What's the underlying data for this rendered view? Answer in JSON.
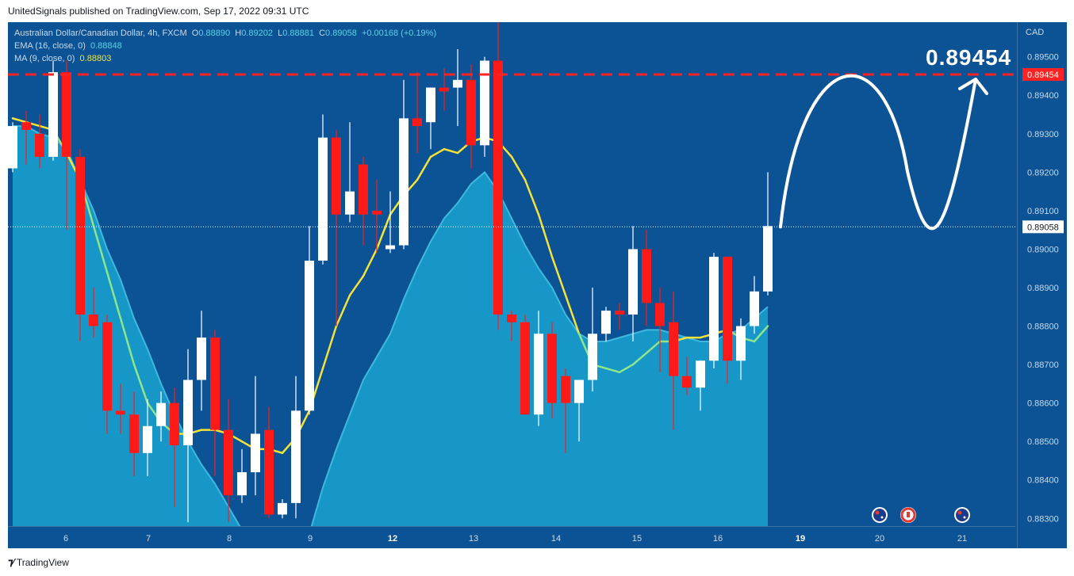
{
  "header": {
    "published_line": "UnitedSignals published on TradingView.com, Sep 17, 2022 09:31 UTC"
  },
  "legend": {
    "symbol_line": "Australian Dollar/Canadian Dollar, 4h, FXCM",
    "o_label": "O",
    "o_value": "0.88890",
    "h_label": "H",
    "h_value": "0.89202",
    "l_label": "L",
    "l_value": "0.88881",
    "c_label": "C",
    "c_value": "0.89058",
    "change": "+0.00168 (+0.19%)",
    "ema_label": "EMA (16, close, 0)",
    "ema_value": "0.88848",
    "ma_label": "MA (9, close, 0)",
    "ma_value": "0.88803"
  },
  "price_axis": {
    "currency": "CAD",
    "ticks": [
      "0.89500",
      "0.89400",
      "0.89300",
      "0.89200",
      "0.89100",
      "0.89000",
      "0.88900",
      "0.88800",
      "0.88700",
      "0.88600",
      "0.88500",
      "0.88400",
      "0.88300"
    ],
    "target_badge": "0.89454",
    "current_badge": "0.89058"
  },
  "time_axis": {
    "labels": [
      "6",
      "7",
      "8",
      "9",
      "12",
      "13",
      "14",
      "15",
      "16",
      "19",
      "20",
      "21"
    ]
  },
  "annotation": {
    "target_text": "0.89454"
  },
  "footer": {
    "brand": "TradingView"
  },
  "colors": {
    "background": "#0b5394",
    "up_candle": "#ffffff",
    "down_candle": "#ff1a1a",
    "ema_fill": "#1aa3d1",
    "ma_line": "#f5e33a",
    "ma_line_below": "#8fe68a",
    "target_line": "#ff2222"
  },
  "events": [
    {
      "icon": "australia-flag-icon"
    },
    {
      "icon": "canada-flag-icon"
    },
    {
      "icon": "australia-flag-icon"
    }
  ],
  "chart_data": {
    "type": "candlestick",
    "symbol": "AUD/CAD",
    "timeframe": "4h",
    "y_range": [
      0.8828,
      0.8959
    ],
    "target_level": 0.89454,
    "last_price": 0.89058,
    "candles": [
      {
        "o": 0.8921,
        "h": 0.8933,
        "l": 0.892,
        "c": 0.8932
      },
      {
        "o": 0.8933,
        "h": 0.8936,
        "l": 0.8922,
        "c": 0.8931
      },
      {
        "o": 0.893,
        "h": 0.8935,
        "l": 0.8921,
        "c": 0.8924
      },
      {
        "o": 0.8924,
        "h": 0.8949,
        "l": 0.8923,
        "c": 0.8946
      },
      {
        "o": 0.8946,
        "h": 0.8949,
        "l": 0.8905,
        "c": 0.8924
      },
      {
        "o": 0.8924,
        "h": 0.8926,
        "l": 0.8876,
        "c": 0.8883
      },
      {
        "o": 0.8883,
        "h": 0.889,
        "l": 0.8877,
        "c": 0.888
      },
      {
        "o": 0.8881,
        "h": 0.8883,
        "l": 0.8852,
        "c": 0.8858
      },
      {
        "o": 0.8858,
        "h": 0.8865,
        "l": 0.8852,
        "c": 0.8857
      },
      {
        "o": 0.8857,
        "h": 0.8863,
        "l": 0.8841,
        "c": 0.8847
      },
      {
        "o": 0.8847,
        "h": 0.8861,
        "l": 0.8841,
        "c": 0.8854
      },
      {
        "o": 0.8854,
        "h": 0.8863,
        "l": 0.885,
        "c": 0.886
      },
      {
        "o": 0.886,
        "h": 0.8864,
        "l": 0.8833,
        "c": 0.8849
      },
      {
        "o": 0.8849,
        "h": 0.8874,
        "l": 0.8829,
        "c": 0.8866
      },
      {
        "o": 0.8866,
        "h": 0.8884,
        "l": 0.8858,
        "c": 0.8877
      },
      {
        "o": 0.8877,
        "h": 0.8879,
        "l": 0.8841,
        "c": 0.8853
      },
      {
        "o": 0.8853,
        "h": 0.8861,
        "l": 0.8829,
        "c": 0.8836
      },
      {
        "o": 0.8836,
        "h": 0.8848,
        "l": 0.8834,
        "c": 0.8842
      },
      {
        "o": 0.8842,
        "h": 0.8867,
        "l": 0.8836,
        "c": 0.8852
      },
      {
        "o": 0.8853,
        "h": 0.8859,
        "l": 0.883,
        "c": 0.8831
      },
      {
        "o": 0.8831,
        "h": 0.8835,
        "l": 0.883,
        "c": 0.8834
      },
      {
        "o": 0.8834,
        "h": 0.8867,
        "l": 0.883,
        "c": 0.8858
      },
      {
        "o": 0.8858,
        "h": 0.8906,
        "l": 0.8857,
        "c": 0.8897
      },
      {
        "o": 0.8897,
        "h": 0.8935,
        "l": 0.8896,
        "c": 0.8929
      },
      {
        "o": 0.8929,
        "h": 0.8931,
        "l": 0.888,
        "c": 0.8909
      },
      {
        "o": 0.8909,
        "h": 0.8933,
        "l": 0.8907,
        "c": 0.8915
      },
      {
        "o": 0.8922,
        "h": 0.8924,
        "l": 0.8901,
        "c": 0.8909
      },
      {
        "o": 0.891,
        "h": 0.8918,
        "l": 0.8899,
        "c": 0.8909
      },
      {
        "o": 0.89,
        "h": 0.8915,
        "l": 0.8899,
        "c": 0.8901
      },
      {
        "o": 0.8901,
        "h": 0.8944,
        "l": 0.89,
        "c": 0.8934
      },
      {
        "o": 0.8934,
        "h": 0.8946,
        "l": 0.8925,
        "c": 0.8932
      },
      {
        "o": 0.8933,
        "h": 0.8942,
        "l": 0.8926,
        "c": 0.8942
      },
      {
        "o": 0.8942,
        "h": 0.8947,
        "l": 0.8936,
        "c": 0.8941
      },
      {
        "o": 0.8942,
        "h": 0.8952,
        "l": 0.8932,
        "c": 0.8944
      },
      {
        "o": 0.8944,
        "h": 0.8948,
        "l": 0.8921,
        "c": 0.8927
      },
      {
        "o": 0.8927,
        "h": 0.895,
        "l": 0.8924,
        "c": 0.8949
      },
      {
        "o": 0.8949,
        "h": 0.8963,
        "l": 0.8879,
        "c": 0.8883
      },
      {
        "o": 0.8883,
        "h": 0.8884,
        "l": 0.8876,
        "c": 0.8881
      },
      {
        "o": 0.8881,
        "h": 0.8883,
        "l": 0.8857,
        "c": 0.8857
      },
      {
        "o": 0.8857,
        "h": 0.8884,
        "l": 0.8854,
        "c": 0.8878
      },
      {
        "o": 0.8878,
        "h": 0.8881,
        "l": 0.8856,
        "c": 0.886
      },
      {
        "o": 0.8867,
        "h": 0.8869,
        "l": 0.8847,
        "c": 0.886
      },
      {
        "o": 0.886,
        "h": 0.8866,
        "l": 0.885,
        "c": 0.8866
      },
      {
        "o": 0.8866,
        "h": 0.889,
        "l": 0.8863,
        "c": 0.8878
      },
      {
        "o": 0.8878,
        "h": 0.8885,
        "l": 0.8876,
        "c": 0.8884
      },
      {
        "o": 0.8884,
        "h": 0.8886,
        "l": 0.8879,
        "c": 0.8883
      },
      {
        "o": 0.8883,
        "h": 0.8906,
        "l": 0.8876,
        "c": 0.89
      },
      {
        "o": 0.89,
        "h": 0.8905,
        "l": 0.888,
        "c": 0.8886
      },
      {
        "o": 0.8886,
        "h": 0.889,
        "l": 0.8868,
        "c": 0.888
      },
      {
        "o": 0.8881,
        "h": 0.8889,
        "l": 0.8853,
        "c": 0.8867
      },
      {
        "o": 0.8867,
        "h": 0.8872,
        "l": 0.8862,
        "c": 0.8864
      },
      {
        "o": 0.8864,
        "h": 0.8871,
        "l": 0.8858,
        "c": 0.8871
      },
      {
        "o": 0.8871,
        "h": 0.8899,
        "l": 0.8869,
        "c": 0.8898
      },
      {
        "o": 0.8898,
        "h": 0.8898,
        "l": 0.8865,
        "c": 0.8871
      },
      {
        "o": 0.8871,
        "h": 0.8882,
        "l": 0.8866,
        "c": 0.888
      },
      {
        "o": 0.888,
        "h": 0.8893,
        "l": 0.8878,
        "c": 0.8889
      },
      {
        "o": 0.8889,
        "h": 0.892,
        "l": 0.8888,
        "c": 0.8906
      }
    ],
    "ema_16": [
      0.8932,
      0.8932,
      0.893,
      0.8929,
      0.8926,
      0.8918,
      0.891,
      0.89,
      0.8892,
      0.8882,
      0.8874,
      0.8865,
      0.8857,
      0.885,
      0.8844,
      0.8839,
      0.8833,
      0.8827,
      0.8822,
      0.8818,
      0.8815,
      0.8816,
      0.8826,
      0.8838,
      0.8848,
      0.8857,
      0.8866,
      0.8872,
      0.8878,
      0.8887,
      0.8895,
      0.8902,
      0.8908,
      0.8912,
      0.8917,
      0.892,
      0.8915,
      0.8908,
      0.8901,
      0.8895,
      0.889,
      0.8883,
      0.8878,
      0.8876,
      0.8876,
      0.8877,
      0.8878,
      0.8879,
      0.8879,
      0.8878,
      0.8877,
      0.8876,
      0.8876,
      0.8878,
      0.8879,
      0.8882,
      0.8885
    ],
    "ma_9": [
      0.8934,
      0.8933,
      0.8932,
      0.8931,
      0.8925,
      0.8918,
      0.8906,
      0.8894,
      0.8882,
      0.887,
      0.886,
      0.8855,
      0.8852,
      0.8852,
      0.8853,
      0.8853,
      0.8852,
      0.885,
      0.8848,
      0.8848,
      0.8847,
      0.8851,
      0.8858,
      0.8869,
      0.888,
      0.8888,
      0.8893,
      0.89,
      0.8909,
      0.8914,
      0.8918,
      0.8924,
      0.8926,
      0.8925,
      0.8928,
      0.8929,
      0.8928,
      0.8924,
      0.8918,
      0.8909,
      0.8898,
      0.8888,
      0.8878,
      0.887,
      0.8869,
      0.8868,
      0.887,
      0.8873,
      0.8876,
      0.8876,
      0.8877,
      0.8877,
      0.8878,
      0.8879,
      0.8877,
      0.8876,
      0.888
    ]
  }
}
